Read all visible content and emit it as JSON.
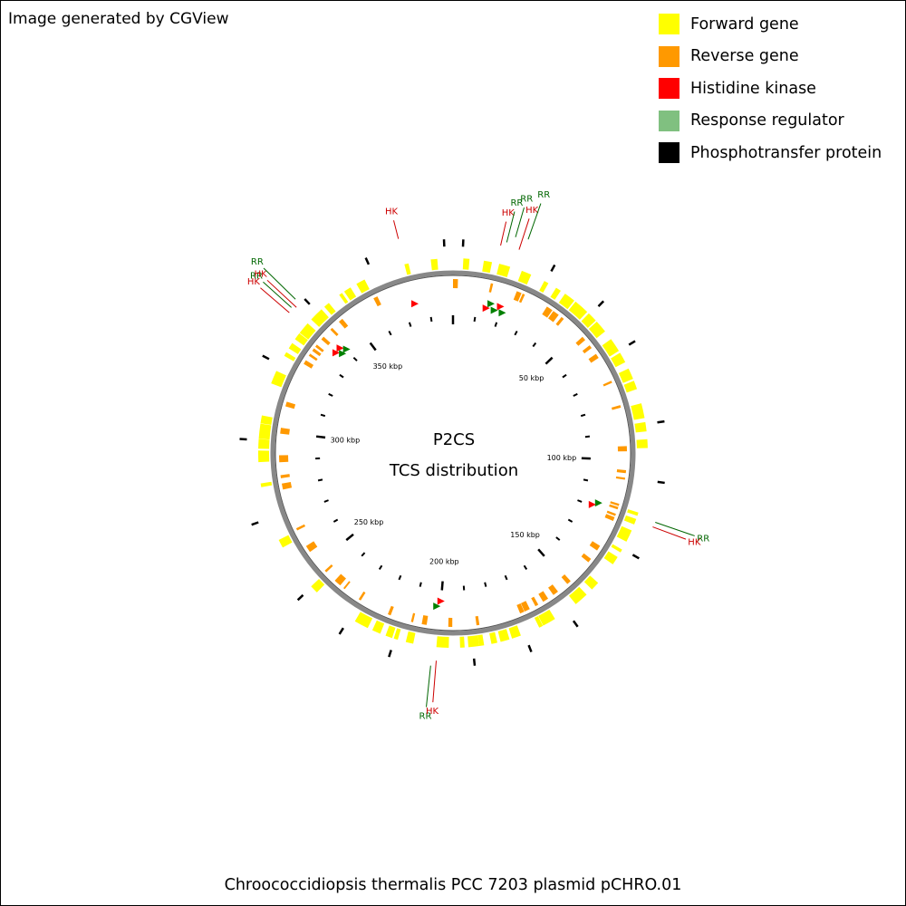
{
  "credit": "Image generated by CGView",
  "legend": [
    {
      "label": "Forward gene",
      "color": "#ffff00"
    },
    {
      "label": "Reverse gene",
      "color": "#ff9900"
    },
    {
      "label": "Histidine kinase",
      "color": "#ff0000"
    },
    {
      "label": "Response regulator",
      "color": "#80c080"
    },
    {
      "label": "Phosphotransfer protein",
      "color": "#000000"
    }
  ],
  "map": {
    "title": "P2CS",
    "subtitle": "TCS distribution",
    "plasmid_label": "Chroococcidiopsis thermalis PCC 7203 plasmid pCHRO.01",
    "sequence_length_kbp": 390,
    "ruler_labels": [
      {
        "kbp": 50,
        "text": "50 kbp"
      },
      {
        "kbp": 100,
        "text": "100 kbp"
      },
      {
        "kbp": 150,
        "text": "150 kbp"
      },
      {
        "kbp": 200,
        "text": "200 kbp"
      },
      {
        "kbp": 250,
        "text": "250 kbp"
      },
      {
        "kbp": 300,
        "text": "300 kbp"
      },
      {
        "kbp": 350,
        "text": "350 kbp"
      }
    ],
    "tcs_features": [
      {
        "label": "HK",
        "kbp": 374.5,
        "color": "#cc0000"
      },
      {
        "label": "HK",
        "kbp": 14.0,
        "color": "#cc0000"
      },
      {
        "label": "RR",
        "kbp": 15.5,
        "color": "#006600"
      },
      {
        "label": "RR",
        "kbp": 17.5,
        "color": "#006600"
      },
      {
        "label": "HK",
        "kbp": 19.5,
        "color": "#cc0000"
      },
      {
        "label": "RR",
        "kbp": 21.0,
        "color": "#006600"
      },
      {
        "label": "RR",
        "kbp": 118.0,
        "color": "#006600"
      },
      {
        "label": "HK",
        "kbp": 119.5,
        "color": "#cc0000"
      },
      {
        "label": "RR",
        "kbp": 201.5,
        "color": "#006600"
      },
      {
        "label": "HK",
        "kbp": 200.0,
        "color": "#cc0000"
      },
      {
        "label": "HK",
        "kbp": 336.5,
        "color": "#cc0000"
      },
      {
        "label": "RR",
        "kbp": 338.0,
        "color": "#006600"
      },
      {
        "label": "HK",
        "kbp": 339.0,
        "color": "#cc0000"
      },
      {
        "label": "RR",
        "kbp": 340.5,
        "color": "#006600"
      }
    ]
  }
}
